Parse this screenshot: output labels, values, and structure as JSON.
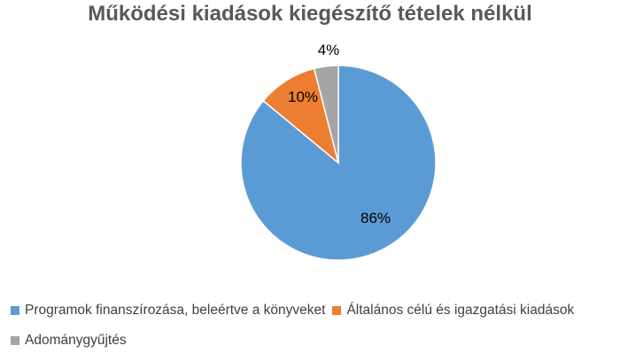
{
  "chart_data": {
    "type": "pie",
    "title": "Működési kiadások kiegészítő tételek nélkül",
    "slices": [
      {
        "label": "Programok finanszírozása, beleértve a könyveket",
        "value": 86,
        "value_label": "86%",
        "color": "#5B9BD5"
      },
      {
        "label": "Általános célú és igazgatási kiadások",
        "value": 10,
        "value_label": "10%",
        "color": "#ED7D31"
      },
      {
        "label": "Adománygyűjtés",
        "value": 4,
        "value_label": "4%",
        "color": "#A5A5A5"
      }
    ],
    "legend_position": "bottom"
  }
}
